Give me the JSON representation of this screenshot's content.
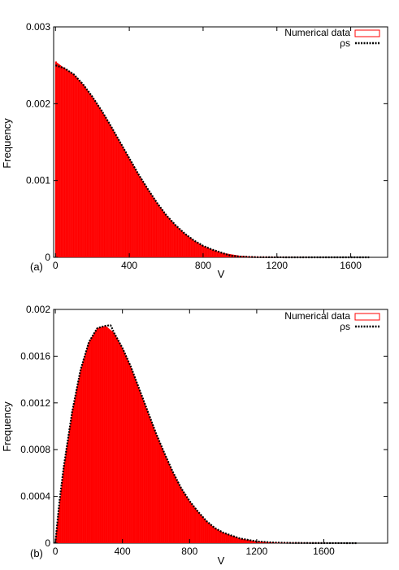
{
  "chart_data": [
    {
      "type": "bar",
      "panel_label": "(a)",
      "xlabel": "V",
      "ylabel": "Frequency",
      "xlim": [
        -10,
        1800
      ],
      "ylim": [
        0,
        0.003
      ],
      "xticks": [
        "0",
        "400",
        "800",
        "1200",
        "1600"
      ],
      "yticks": [
        "0",
        "0.001",
        "0.002",
        "0.003"
      ],
      "legend": {
        "placement": "top-right",
        "entries": [
          "Numerical data",
          "ρs"
        ]
      },
      "bar_color": "#ff0000",
      "curve_color": "#000000",
      "series": [
        {
          "name": "Numerical data",
          "kind": "histogram",
          "x": [
            0,
            50,
            100,
            150,
            200,
            250,
            300,
            350,
            400,
            450,
            500,
            550,
            600,
            650,
            700,
            750,
            800,
            850,
            900,
            950,
            1000,
            1050,
            1100,
            1150,
            1200,
            1300,
            1400,
            1500,
            1600,
            1700
          ],
          "values": [
            0.00255,
            0.00246,
            0.00238,
            0.00225,
            0.00209,
            0.00191,
            0.00171,
            0.0015,
            0.00129,
            0.00108,
            0.00089,
            0.00071,
            0.00055,
            0.00042,
            0.00031,
            0.00022,
            0.00015,
            0.0001,
            6e-05,
            4e-05,
            2e-05,
            1e-05,
            5e-06,
            3e-06,
            2e-06,
            1e-06,
            5e-07,
            3e-07,
            2e-07,
            1e-07
          ]
        },
        {
          "name": "ρs",
          "kind": "curve",
          "x": [
            0,
            50,
            100,
            150,
            200,
            250,
            300,
            350,
            400,
            450,
            500,
            550,
            600,
            650,
            700,
            750,
            800,
            850,
            900,
            950,
            1000,
            1050,
            1100,
            1200,
            1300,
            1400,
            1500,
            1600,
            1700
          ],
          "values": [
            0.0025,
            0.00246,
            0.00238,
            0.00225,
            0.00209,
            0.00191,
            0.00171,
            0.0015,
            0.00129,
            0.00108,
            0.00089,
            0.00071,
            0.00055,
            0.00042,
            0.00031,
            0.00022,
            0.00015,
            0.0001,
            6e-05,
            2e-05,
            1e-05,
            5e-06,
            2e-06,
            5e-07,
            1e-07,
            0,
            0,
            0,
            0
          ]
        }
      ]
    },
    {
      "type": "bar",
      "panel_label": "(b)",
      "xlabel": "V",
      "ylabel": "Frequency",
      "xlim": [
        -10,
        1980
      ],
      "ylim": [
        0,
        0.002
      ],
      "xticks": [
        "0",
        "400",
        "800",
        "1200",
        "1600"
      ],
      "yticks": [
        "0",
        "0.0004",
        "0.0008",
        "0.0012",
        "0.0016",
        "0.002"
      ],
      "legend": {
        "placement": "top-right",
        "entries": [
          "Numerical data",
          "ρs"
        ]
      },
      "bar_color": "#ff0000",
      "curve_color": "#000000",
      "series": [
        {
          "name": "Numerical data",
          "kind": "histogram",
          "x": [
            0,
            50,
            100,
            150,
            200,
            250,
            300,
            350,
            400,
            450,
            500,
            550,
            600,
            650,
            700,
            750,
            800,
            850,
            900,
            950,
            1000,
            1100,
            1200,
            1300,
            1400,
            1500,
            1600,
            1700,
            1800
          ],
          "values": [
            3e-05,
            0.00065,
            0.00112,
            0.00148,
            0.00172,
            0.00184,
            0.00186,
            0.0018,
            0.00167,
            0.00151,
            0.00132,
            0.00113,
            0.00094,
            0.00077,
            0.00061,
            0.00047,
            0.00036,
            0.00027,
            0.00019,
            0.00013,
            9e-05,
            4e-05,
            1.5e-05,
            5e-06,
            2e-06,
            1e-06,
            5e-07,
            2e-07,
            1e-07
          ]
        },
        {
          "name": "ρs",
          "kind": "curve",
          "x": [
            0,
            25,
            50,
            100,
            150,
            200,
            250,
            300,
            330,
            350,
            400,
            450,
            500,
            550,
            600,
            650,
            700,
            750,
            800,
            850,
            900,
            950,
            1000,
            1100,
            1200,
            1300,
            1400,
            1600,
            1800
          ],
          "values": [
            0,
            0.00036,
            0.00065,
            0.00112,
            0.00148,
            0.00172,
            0.00184,
            0.00186,
            0.001865,
            0.0018,
            0.00167,
            0.00151,
            0.00132,
            0.00113,
            0.00094,
            0.00077,
            0.00061,
            0.00047,
            0.00036,
            0.00027,
            0.00019,
            0.00013,
            9e-05,
            4e-05,
            1.5e-05,
            5e-06,
            2e-06,
            5e-07,
            1e-07
          ]
        }
      ]
    }
  ]
}
